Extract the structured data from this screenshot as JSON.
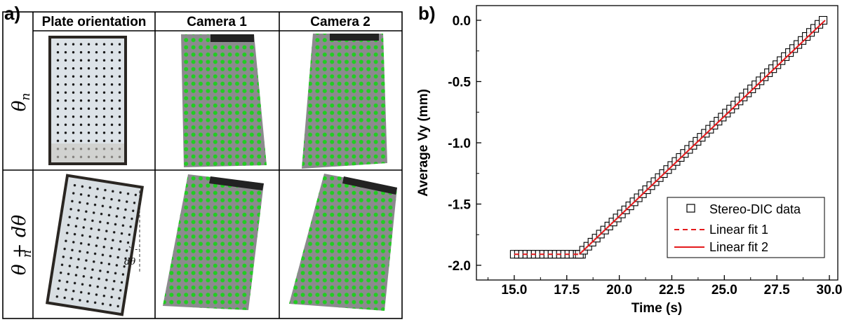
{
  "panel_a": {
    "label": "a)",
    "headers": [
      "Plate orientation",
      "Camera 1",
      "Camera 2"
    ],
    "rows": [
      "θ",
      "θ + dθ"
    ],
    "row_subscript": "n",
    "angle_annotation": "dθ",
    "colors": {
      "dot": "#1a1a1a",
      "marker": "#22cc22",
      "plate": "#dde3e8",
      "frame": "#2a2622",
      "camera_bg": "#8c8a8e"
    }
  },
  "panel_b": {
    "label": "b)"
  },
  "chart_data": {
    "type": "scatter",
    "xlabel": "Time (s)",
    "ylabel": "Average Vy (mm)",
    "xlim": [
      13.2,
      30.4
    ],
    "ylim": [
      -2.12,
      0.12
    ],
    "xticks": [
      "15.0",
      "17.5",
      "20.0",
      "22.5",
      "25.0",
      "27.5",
      "30.0"
    ],
    "yticks": [
      "0.0",
      "-0.5",
      "-1.0",
      "-1.5",
      "-2.0"
    ],
    "legend_position": "bottom-right",
    "grid": false,
    "series": [
      {
        "name": "Stereo-DIC data",
        "style": "open-square",
        "color": "#000000",
        "segments": [
          {
            "x_start": 15.0,
            "x_end": 18.1,
            "step": 0.2,
            "y_start": -1.91,
            "y_end": -1.91
          },
          {
            "x_start": 18.1,
            "x_end": 29.8,
            "step": 0.2,
            "y_start": -1.91,
            "y_end": 0.0
          }
        ]
      },
      {
        "name": "Linear fit 1",
        "style": "dashed",
        "color": "#e41a1c",
        "x": [
          15.0,
          18.1
        ],
        "y": [
          -1.91,
          -1.91
        ]
      },
      {
        "name": "Linear fit 2",
        "style": "solid",
        "color": "#e41a1c",
        "x": [
          18.1,
          29.8
        ],
        "y": [
          -1.91,
          0.0
        ]
      }
    ]
  }
}
